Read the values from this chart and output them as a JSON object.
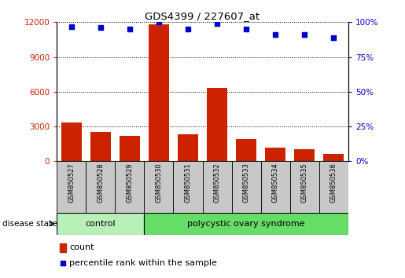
{
  "title": "GDS4399 / 227607_at",
  "samples": [
    "GSM850527",
    "GSM850528",
    "GSM850529",
    "GSM850530",
    "GSM850531",
    "GSM850532",
    "GSM850533",
    "GSM850534",
    "GSM850535",
    "GSM850536"
  ],
  "counts": [
    3350,
    2500,
    2200,
    11800,
    2300,
    6300,
    1900,
    1200,
    1050,
    650
  ],
  "percentiles": [
    97,
    96,
    95,
    100,
    95,
    99,
    95,
    91,
    91,
    89
  ],
  "ylim_left": [
    0,
    12000
  ],
  "ylim_right": [
    0,
    100
  ],
  "yticks_left": [
    0,
    3000,
    6000,
    9000,
    12000
  ],
  "yticks_right": [
    0,
    25,
    50,
    75,
    100
  ],
  "bar_color": "#cc2200",
  "dot_color": "#0000cc",
  "grid_color": "#000000",
  "tick_area_color": "#c8c8c8",
  "control_color": "#b8f0b8",
  "pcos_color": "#66dd66",
  "control_samples": 3,
  "legend_count_label": "count",
  "legend_percentile_label": "percentile rank within the sample",
  "disease_state_label": "disease state",
  "control_label": "control",
  "pcos_label": "polycystic ovary syndrome"
}
